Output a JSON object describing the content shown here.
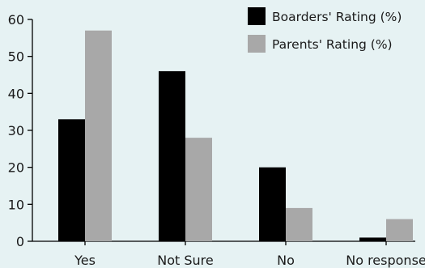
{
  "chart_data": {
    "type": "bar",
    "title": "",
    "xlabel": "",
    "ylabel": "",
    "categories": [
      "Yes",
      "Not Sure",
      "No",
      "No response"
    ],
    "series": [
      {
        "name": "Boarders' Rating (%)",
        "values": [
          33,
          46,
          20,
          1
        ],
        "color": "#000000"
      },
      {
        "name": "Parents' Rating (%)",
        "values": [
          57,
          28,
          9,
          6
        ],
        "color": "#a8a8a8"
      }
    ],
    "ylim": [
      0,
      60
    ],
    "yticks": [
      0,
      10,
      20,
      30,
      40,
      50,
      60
    ],
    "grid": false,
    "legend_position": "top-right",
    "background": "#e6f2f3"
  }
}
